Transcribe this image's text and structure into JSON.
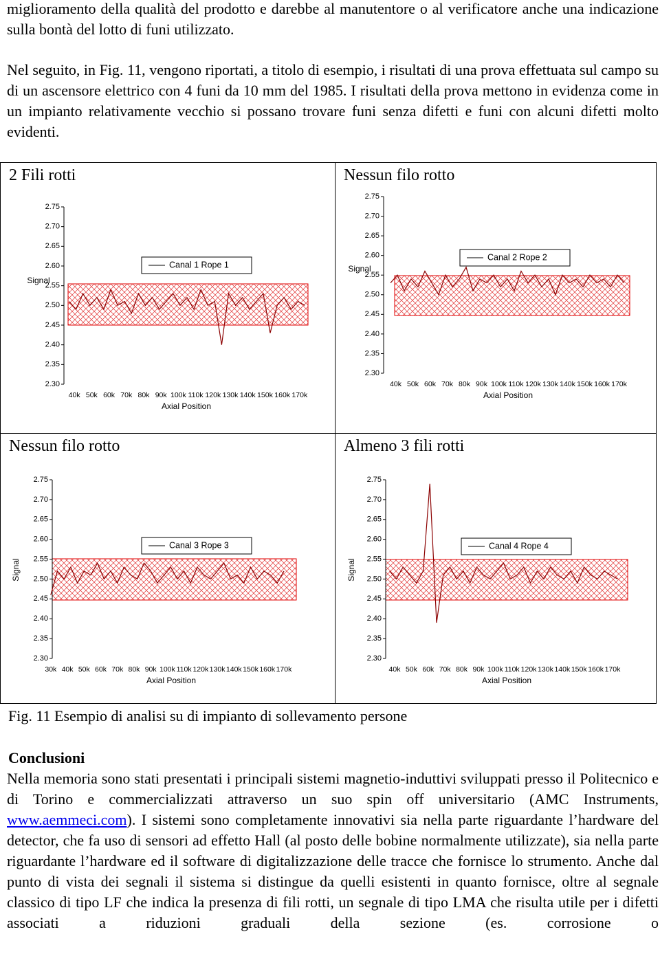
{
  "paragraphs": [
    "miglioramento della qualità del prodotto e darebbe al manutentore o al verificatore anche una indicazione sulla bontà del lotto di funi utilizzato.",
    "Nel seguito, in Fig. 11, vengono riportati, a titolo di esempio, i risultati di una  prova effettuata sul campo su di un ascensore elettrico con 4 funi da 10 mm del 1985. I risultati della prova mettono in evidenza come in un impianto relativamente vecchio si possano trovare funi senza difetti e funi con alcuni difetti molto evidenti."
  ],
  "figure": {
    "panels": [
      {
        "heading": "2 Fili rotti",
        "chart": {
          "type": "line",
          "x_label": "Axial Position",
          "y_label": "Signal",
          "xlim": [
            34000,
            176000
          ],
          "ylim": [
            2.3,
            2.75
          ],
          "xticks": [
            {
              "value": 40000,
              "label": "40k"
            },
            {
              "value": 50000,
              "label": "50k"
            },
            {
              "value": 60000,
              "label": "60k"
            },
            {
              "value": 70000,
              "label": "70k"
            },
            {
              "value": 80000,
              "label": "80k"
            },
            {
              "value": 90000,
              "label": "90k"
            },
            {
              "value": 100000,
              "label": "100k"
            },
            {
              "value": 110000,
              "label": "110k"
            },
            {
              "value": 120000,
              "label": "120k"
            },
            {
              "value": 130000,
              "label": "130k"
            },
            {
              "value": 140000,
              "label": "140k"
            },
            {
              "value": 150000,
              "label": "150k"
            },
            {
              "value": 160000,
              "label": "160k"
            },
            {
              "value": 170000,
              "label": "170k"
            }
          ],
          "yticks": [
            {
              "value": 2.3,
              "label": "2.30"
            },
            2.35,
            {
              "value": 2.4,
              "label": "2.40"
            },
            2.45,
            {
              "value": 2.5,
              "label": "2.50"
            },
            2.55,
            {
              "value": 2.6,
              "label": "2.60"
            },
            2.65,
            {
              "value": 2.7,
              "label": "2.70"
            },
            2.75
          ],
          "series": [
            {
              "name": "Canal 1 Rope 1",
              "color": "#8b0000",
              "x": [
                37000,
                41000,
                45000,
                49000,
                53000,
                57000,
                61000,
                65000,
                69000,
                73000,
                77000,
                81000,
                85000,
                89000,
                93000,
                97000,
                101000,
                105000,
                109000,
                113000,
                117000,
                121000,
                125000,
                129000,
                133000,
                137000,
                141000,
                145000,
                149000,
                153000,
                157000,
                161000,
                165000,
                169000,
                173000
              ],
              "values": [
                2.51,
                2.49,
                2.53,
                2.5,
                2.52,
                2.49,
                2.54,
                2.5,
                2.51,
                2.48,
                2.53,
                2.5,
                2.52,
                2.49,
                2.51,
                2.53,
                2.5,
                2.52,
                2.49,
                2.54,
                2.5,
                2.51,
                2.4,
                2.53,
                2.5,
                2.52,
                2.49,
                2.51,
                2.53,
                2.43,
                2.5,
                2.52,
                2.49,
                2.51,
                2.5
              ]
            }
          ]
        }
      },
      {
        "heading": "Nessun filo rotto",
        "chart": {
          "type": "line",
          "x_label": "Axial Position",
          "y_label": "Signal",
          "xlim": [
            33000,
            177000
          ],
          "ylim": [
            2.3,
            2.75
          ],
          "xticks": [
            {
              "value": 40000,
              "label": "40k"
            },
            {
              "value": 50000,
              "label": "50k"
            },
            {
              "value": 60000,
              "label": "60k"
            },
            {
              "value": 70000,
              "label": "70k"
            },
            {
              "value": 80000,
              "label": "80k"
            },
            {
              "value": 90000,
              "label": "90k"
            },
            {
              "value": 100000,
              "label": "100k"
            },
            {
              "value": 110000,
              "label": "110k"
            },
            {
              "value": 120000,
              "label": "120k"
            },
            {
              "value": 130000,
              "label": "130k"
            },
            {
              "value": 140000,
              "label": "140k"
            },
            {
              "value": 150000,
              "label": "150k"
            },
            {
              "value": 160000,
              "label": "160k"
            },
            {
              "value": 170000,
              "label": "170k"
            }
          ],
          "yticks": [
            {
              "value": 2.3,
              "label": "2.30"
            },
            2.35,
            {
              "value": 2.4,
              "label": "2.40"
            },
            2.45,
            {
              "value": 2.5,
              "label": "2.50"
            },
            2.55,
            {
              "value": 2.6,
              "label": "2.60"
            },
            2.65,
            {
              "value": 2.7,
              "label": "2.70"
            },
            2.75
          ],
          "series": [
            {
              "name": "Canal 2 Rope 2",
              "color": "#8b0000",
              "x": [
                37000,
                41000,
                45000,
                49000,
                53000,
                57000,
                61000,
                65000,
                69000,
                73000,
                77000,
                81000,
                85000,
                89000,
                93000,
                97000,
                101000,
                105000,
                109000,
                113000,
                117000,
                121000,
                125000,
                129000,
                133000,
                137000,
                141000,
                145000,
                149000,
                153000,
                157000,
                161000,
                165000,
                169000,
                173000
              ],
              "values": [
                2.53,
                2.55,
                2.51,
                2.54,
                2.52,
                2.56,
                2.53,
                2.5,
                2.55,
                2.52,
                2.54,
                2.57,
                2.51,
                2.54,
                2.53,
                2.55,
                2.52,
                2.54,
                2.51,
                2.56,
                2.53,
                2.55,
                2.52,
                2.54,
                2.5,
                2.55,
                2.53,
                2.54,
                2.52,
                2.55,
                2.53,
                2.54,
                2.52,
                2.55,
                2.53
              ]
            }
          ]
        }
      },
      {
        "heading": "Nessun filo rotto",
        "chart": {
          "type": "line",
          "x_label": "Axial Position",
          "y_label": "Signal",
          "xlim": [
            28000,
            176000
          ],
          "ylim": [
            2.3,
            2.75
          ],
          "xticks": [
            {
              "value": 30000,
              "label": "30k"
            },
            {
              "value": 40000,
              "label": "40k"
            },
            {
              "value": 50000,
              "label": "50k"
            },
            {
              "value": 60000,
              "label": "60k"
            },
            {
              "value": 70000,
              "label": "70k"
            },
            {
              "value": 80000,
              "label": "80k"
            },
            {
              "value": 90000,
              "label": "90k"
            },
            {
              "value": 100000,
              "label": "100k"
            },
            {
              "value": 110000,
              "label": "110k"
            },
            {
              "value": 120000,
              "label": "120k"
            },
            {
              "value": 130000,
              "label": "130k"
            },
            {
              "value": 140000,
              "label": "140k"
            },
            {
              "value": 150000,
              "label": "150k"
            },
            {
              "value": 160000,
              "label": "160k"
            },
            {
              "value": 170000,
              "label": "170k"
            }
          ],
          "yticks": [
            {
              "value": 2.3,
              "label": "2.30"
            },
            2.35,
            {
              "value": 2.4,
              "label": "2.40"
            },
            2.45,
            {
              "value": 2.5,
              "label": "2.50"
            },
            2.55,
            {
              "value": 2.6,
              "label": "2.60"
            },
            2.65,
            {
              "value": 2.7,
              "label": "2.70"
            },
            2.75
          ],
          "series": [
            {
              "name": "Canal 3 Rope 3",
              "color": "#8b0000",
              "x": [
                30000,
                34000,
                38000,
                42000,
                46000,
                50000,
                54000,
                58000,
                62000,
                66000,
                70000,
                74000,
                78000,
                82000,
                86000,
                90000,
                94000,
                98000,
                102000,
                106000,
                110000,
                114000,
                118000,
                122000,
                126000,
                130000,
                134000,
                138000,
                142000,
                146000,
                150000,
                154000,
                158000,
                162000,
                166000,
                170000
              ],
              "values": [
                2.46,
                2.52,
                2.5,
                2.53,
                2.49,
                2.52,
                2.51,
                2.54,
                2.5,
                2.52,
                2.49,
                2.53,
                2.51,
                2.5,
                2.54,
                2.52,
                2.49,
                2.51,
                2.53,
                2.5,
                2.52,
                2.49,
                2.53,
                2.51,
                2.5,
                2.52,
                2.54,
                2.5,
                2.51,
                2.49,
                2.53,
                2.5,
                2.52,
                2.51,
                2.49,
                2.52
              ]
            }
          ]
        }
      },
      {
        "heading": "Almeno 3 fili rotti",
        "chart": {
          "type": "line",
          "x_label": "Axial Position",
          "y_label": "Signal",
          "xlim": [
            34000,
            176000
          ],
          "ylim": [
            2.3,
            2.75
          ],
          "xticks": [
            {
              "value": 40000,
              "label": "40k"
            },
            {
              "value": 50000,
              "label": "50k"
            },
            {
              "value": 60000,
              "label": "60k"
            },
            {
              "value": 70000,
              "label": "70k"
            },
            {
              "value": 80000,
              "label": "80k"
            },
            {
              "value": 90000,
              "label": "90k"
            },
            {
              "value": 100000,
              "label": "100k"
            },
            {
              "value": 110000,
              "label": "110k"
            },
            {
              "value": 120000,
              "label": "120k"
            },
            {
              "value": 130000,
              "label": "130k"
            },
            {
              "value": 140000,
              "label": "140k"
            },
            {
              "value": 150000,
              "label": "150k"
            },
            {
              "value": 160000,
              "label": "160k"
            },
            {
              "value": 170000,
              "label": "170k"
            }
          ],
          "yticks": [
            {
              "value": 2.3,
              "label": "2.30"
            },
            2.35,
            {
              "value": 2.4,
              "label": "2.40"
            },
            2.45,
            {
              "value": 2.5,
              "label": "2.50"
            },
            2.55,
            {
              "value": 2.6,
              "label": "2.60"
            },
            2.65,
            {
              "value": 2.7,
              "label": "2.70"
            },
            2.75
          ],
          "series": [
            {
              "name": "Canal 4 Rope 4",
              "color": "#8b0000",
              "x": [
                37000,
                41000,
                45000,
                49000,
                53000,
                57000,
                61000,
                65000,
                69000,
                73000,
                77000,
                81000,
                85000,
                89000,
                93000,
                97000,
                101000,
                105000,
                109000,
                113000,
                117000,
                121000,
                125000,
                129000,
                133000,
                137000,
                141000,
                145000,
                149000,
                153000,
                157000,
                161000,
                165000,
                169000,
                173000
              ],
              "values": [
                2.52,
                2.5,
                2.53,
                2.51,
                2.49,
                2.52,
                2.74,
                2.39,
                2.51,
                2.53,
                2.5,
                2.52,
                2.49,
                2.53,
                2.51,
                2.5,
                2.52,
                2.54,
                2.5,
                2.51,
                2.53,
                2.49,
                2.52,
                2.5,
                2.53,
                2.51,
                2.5,
                2.52,
                2.49,
                2.53,
                2.51,
                2.5,
                2.52,
                2.51,
                2.5
              ]
            }
          ]
        }
      }
    ],
    "caption": "Fig. 11 Esempio di analisi su di impianto di sollevamento persone"
  },
  "conclusions": {
    "heading": "Conclusioni",
    "text_before": "Nella memoria sono stati presentati i principali sistemi magnetio-induttivi sviluppati presso il Politecnico e di Torino e commercializzati attraverso un suo spin off universitario (AMC Instruments, ",
    "link": "www.aemmeci.com",
    "text_after": "). I sistemi sono completamente innovativi sia nella parte riguardante l’hardware del detector, che fa uso di sensori ad effetto Hall (al posto delle bobine normalmente utilizzate), sia nella parte riguardante l’hardware ed il software di digitalizzazione delle tracce che fornisce lo strumento. Anche dal punto di vista dei segnali il sistema si distingue da quelli esistenti in quanto fornisce, oltre al segnale classico di tipo LF che indica la presenza di fili rotti, un segnale di tipo LMA che risulta utile per i difetti associati a riduzioni graduali della sezione (es. corrosione o"
  }
}
